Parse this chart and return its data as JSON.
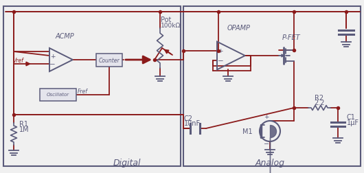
{
  "wire_color": "#8B1A1A",
  "comp_color": "#5A5A7A",
  "bg_color": "#F0F0F0",
  "box_fill": "#E4E4EC",
  "digital_label": "Digital",
  "analog_label": "Analog",
  "acmp_label": "ACMP",
  "opamp_label": "OPAMP",
  "pfet_label": "P-FET",
  "counter_label": "Counter",
  "osc_label": "Oscillator",
  "pot_line1": "Pot",
  "pot_line2": "100kΩ",
  "r1_line1": "R1",
  "r1_line2": "1M",
  "r2_line1": "R2",
  "r2_line2": "2.2",
  "c1_line1": "C1",
  "c1_line2": "1μF",
  "c2_line1": "C2",
  "c2_line2": "10nF",
  "m1_label": "M1",
  "vref_label": "Vref",
  "fref_label": "Fref"
}
